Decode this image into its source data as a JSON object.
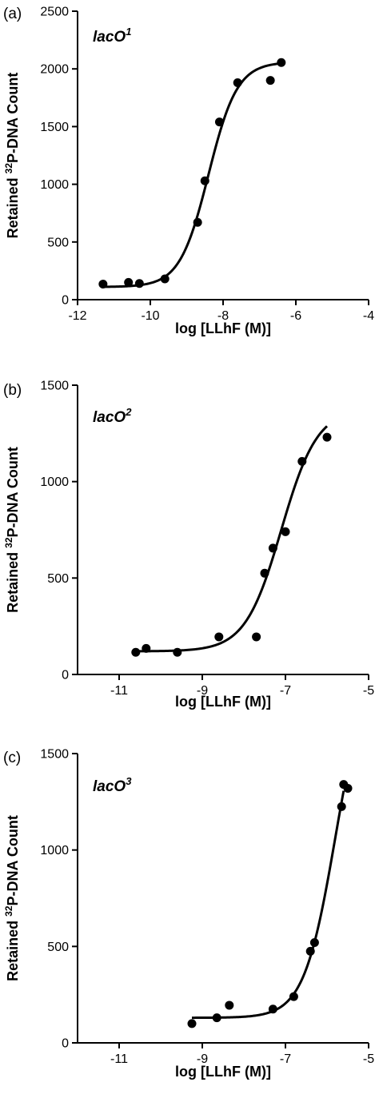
{
  "chart_data": [
    {
      "type": "scatter",
      "panel_label": "(a)",
      "annotation": {
        "base": "lacO",
        "sup": "1"
      },
      "xlabel": "log [LLhF (M)]",
      "ylabel": {
        "pre": "Retained ",
        "sup": "32",
        "post": "P-DNA Count"
      },
      "xlim": [
        -12,
        -4
      ],
      "ylim": [
        0,
        2500
      ],
      "xticks": [
        -12,
        -10,
        -8,
        -6,
        -4
      ],
      "xtick_labels": [
        "-12",
        "-10",
        "-8",
        "-6",
        "-4"
      ],
      "yticks": [
        0,
        500,
        1000,
        1500,
        2000,
        2500
      ],
      "ytick_labels": [
        "0",
        "500",
        "1000",
        "1500",
        "2000",
        "2500"
      ],
      "points": [
        {
          "x": -11.3,
          "y": 135
        },
        {
          "x": -10.6,
          "y": 150
        },
        {
          "x": -10.3,
          "y": 140
        },
        {
          "x": -9.6,
          "y": 180
        },
        {
          "x": -8.7,
          "y": 670
        },
        {
          "x": -8.5,
          "y": 1030
        },
        {
          "x": -8.1,
          "y": 1540
        },
        {
          "x": -7.6,
          "y": 1880
        },
        {
          "x": -6.7,
          "y": 1900
        },
        {
          "x": -6.4,
          "y": 2055
        }
      ],
      "fit": {
        "bottom": 110,
        "top": 2060,
        "logEC50": -8.4,
        "hill": 1.1,
        "x_range": [
          -11.3,
          -6.4
        ]
      },
      "grid": false
    },
    {
      "type": "scatter",
      "panel_label": "(b)",
      "annotation": {
        "base": "lacO",
        "sup": "2"
      },
      "xlabel": "log [LLhF (M)]",
      "ylabel": {
        "pre": "Retained ",
        "sup": "32",
        "post": "P-DNA Count"
      },
      "xlim": [
        -12,
        -5
      ],
      "ylim": [
        0,
        1500
      ],
      "xticks": [
        -11,
        -9,
        -7,
        -5
      ],
      "xtick_labels": [
        "-11",
        "-9",
        "-7",
        "-5"
      ],
      "yticks": [
        0,
        500,
        1000,
        1500
      ],
      "ytick_labels": [
        "0",
        "500",
        "1000",
        "1500"
      ],
      "points": [
        {
          "x": -10.6,
          "y": 115
        },
        {
          "x": -10.35,
          "y": 135
        },
        {
          "x": -9.6,
          "y": 115
        },
        {
          "x": -8.6,
          "y": 195
        },
        {
          "x": -7.7,
          "y": 195
        },
        {
          "x": -7.5,
          "y": 525
        },
        {
          "x": -7.3,
          "y": 655
        },
        {
          "x": -7.0,
          "y": 740
        },
        {
          "x": -6.6,
          "y": 1105
        },
        {
          "x": -6.0,
          "y": 1230
        }
      ],
      "fit": {
        "bottom": 120,
        "top": 1380,
        "logEC50": -7.1,
        "hill": 1.0,
        "x_range": [
          -10.6,
          -6.0
        ]
      },
      "grid": false
    },
    {
      "type": "scatter",
      "panel_label": "(c)",
      "annotation": {
        "base": "lacO",
        "sup": "3"
      },
      "xlabel": "log [LLhF (M)]",
      "ylabel": {
        "pre": "Retained ",
        "sup": "32",
        "post": "P-DNA Count"
      },
      "xlim": [
        -12,
        -5
      ],
      "ylim": [
        0,
        1500
      ],
      "xticks": [
        -11,
        -9,
        -7,
        -5
      ],
      "xtick_labels": [
        "-11",
        "-9",
        "-7",
        "-5"
      ],
      "yticks": [
        0,
        500,
        1000,
        1500
      ],
      "ytick_labels": [
        "0",
        "500",
        "1000",
        "1500"
      ],
      "points": [
        {
          "x": -9.25,
          "y": 100
        },
        {
          "x": -8.65,
          "y": 130
        },
        {
          "x": -8.35,
          "y": 195
        },
        {
          "x": -7.3,
          "y": 175
        },
        {
          "x": -6.8,
          "y": 240
        },
        {
          "x": -6.4,
          "y": 475
        },
        {
          "x": -6.3,
          "y": 520
        },
        {
          "x": -5.65,
          "y": 1225
        },
        {
          "x": -5.6,
          "y": 1340
        },
        {
          "x": -5.5,
          "y": 1320
        }
      ],
      "fit": {
        "bottom": 130,
        "top": 2000,
        "logEC50": -5.8,
        "hill": 1.15,
        "x_range": [
          -9.25,
          -5.6
        ]
      },
      "grid": false
    }
  ],
  "style": {
    "ink": "#000000",
    "background": "#ffffff"
  }
}
